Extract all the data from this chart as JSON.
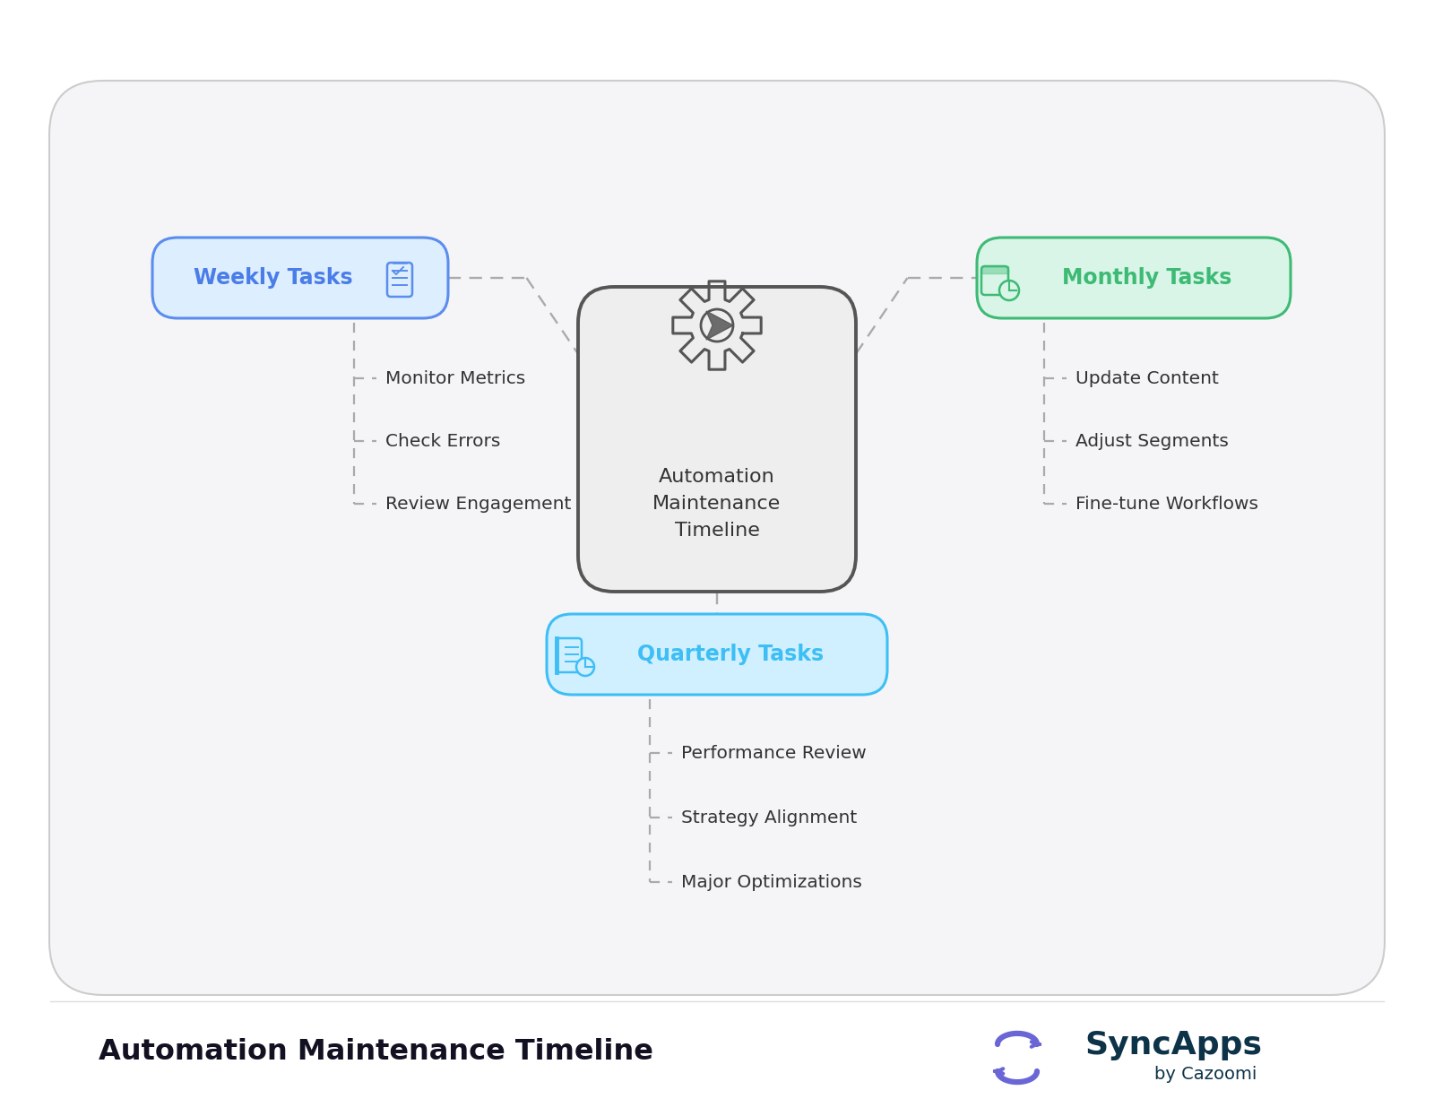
{
  "bg_color": "#ffffff",
  "card_bg": "#eeeeee",
  "card_border": "#555555",
  "weekly_bg": "#ddeeff",
  "weekly_border": "#5b8dee",
  "weekly_text": "#4a7de8",
  "monthly_bg": "#d8f5e8",
  "monthly_border": "#3dba74",
  "monthly_text": "#3dba74",
  "quarterly_bg": "#d0efff",
  "quarterly_border": "#3dbff5",
  "quarterly_text": "#3dbff5",
  "center_title": "Automation\nMaintenance\nTimeline",
  "center_text_color": "#333333",
  "weekly_label": "Weekly Tasks",
  "monthly_label": "Monthly Tasks",
  "quarterly_label": "Quarterly Tasks",
  "weekly_items": [
    "Monitor Metrics",
    "Check Errors",
    "Review Engagement"
  ],
  "monthly_items": [
    "Update Content",
    "Adjust Segments",
    "Fine-tune Workflows"
  ],
  "quarterly_items": [
    "Performance Review",
    "Strategy Alignment",
    "Major Optimizations"
  ],
  "footer_title": "Automation Maintenance Timeline",
  "footer_title_color": "#111122",
  "syncapps_main_color": "#0d3349",
  "syncapps_s_color": "#6b66d6",
  "dash_color": "#aaaaaa",
  "item_text_color": "#333333",
  "outer_bg": "#f5f5f8",
  "outer_border": "#cccccc"
}
